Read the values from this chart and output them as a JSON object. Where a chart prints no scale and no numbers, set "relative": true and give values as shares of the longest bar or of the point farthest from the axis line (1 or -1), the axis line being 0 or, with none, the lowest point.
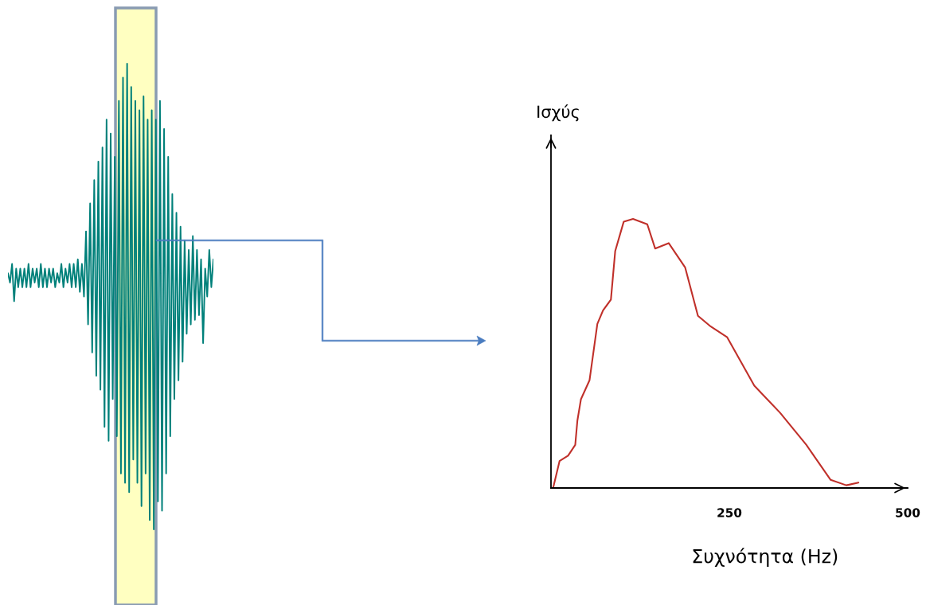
{
  "chart_data": [
    {
      "type": "line",
      "relative": true,
      "tick_labels": false,
      "categories": [
        null,
        null,
        null,
        null,
        null,
        null,
        null,
        null,
        null,
        null,
        null,
        null,
        null,
        null,
        null,
        null,
        null,
        null,
        null,
        null,
        null,
        null,
        null,
        null,
        null,
        null,
        null,
        null,
        null,
        null,
        null,
        null,
        null,
        null,
        null,
        null,
        null,
        null,
        null,
        null,
        null,
        null,
        null,
        null,
        null,
        null,
        null,
        null,
        null,
        null,
        null,
        null,
        null,
        null,
        null,
        null,
        null,
        null,
        null,
        null,
        null,
        null,
        null,
        null,
        null,
        null,
        null,
        null,
        null,
        null,
        null,
        null,
        null,
        null,
        null,
        null,
        null,
        null,
        null,
        null,
        null,
        null,
        null,
        null,
        null,
        null,
        null,
        null,
        null,
        null,
        null,
        null,
        null,
        null,
        null,
        null,
        null,
        null,
        null,
        null,
        null
      ],
      "series": [
        {
          "color": "#00807a",
          "values": [
            0.55,
            0.53,
            0.57,
            0.49,
            0.56,
            0.52,
            0.56,
            0.52,
            0.56,
            0.52,
            0.57,
            0.52,
            0.56,
            0.53,
            0.56,
            0.52,
            0.57,
            0.52,
            0.56,
            0.52,
            0.56,
            0.53,
            0.56,
            0.52,
            0.55,
            0.53,
            0.57,
            0.52,
            0.56,
            0.53,
            0.57,
            0.52,
            0.57,
            0.52,
            0.58,
            0.51,
            0.57,
            0.5,
            0.64,
            0.44,
            0.7,
            0.38,
            0.75,
            0.33,
            0.79,
            0.3,
            0.82,
            0.22,
            0.88,
            0.19,
            0.85,
            0.28,
            0.8,
            0.2,
            0.92,
            0.12,
            0.97,
            0.1,
            1.0,
            0.08,
            0.95,
            0.15,
            0.92,
            0.1,
            0.9,
            0.05,
            0.93,
            0.12,
            0.88,
            0.02,
            0.9,
            0.0,
            0.88,
            0.06,
            0.92,
            0.04,
            0.86,
            0.12,
            0.8,
            0.2,
            0.72,
            0.28,
            0.68,
            0.32,
            0.65,
            0.36,
            0.62,
            0.42,
            0.6,
            0.44,
            0.63,
            0.45,
            0.6,
            0.46,
            0.58,
            0.4,
            0.56,
            0.5,
            0.6,
            0.52,
            0.58
          ]
        }
      ]
    },
    {
      "type": "line",
      "relative": true,
      "tick_labels": "x",
      "xlabel": "Συχνότητα (Hz)",
      "ylabel": "Ισχύς",
      "xlim": [
        0,
        500
      ],
      "xticks": [
        250,
        500
      ],
      "series": [
        {
          "color": "#c0302a",
          "x": [
            3,
            12,
            24,
            34,
            37,
            42,
            54,
            65,
            73,
            84,
            90,
            102,
            115,
            135,
            146,
            165,
            188,
            206,
            224,
            247,
            285,
            321,
            358,
            392,
            414,
            431
          ],
          "values": [
            0,
            0.1,
            0.12,
            0.16,
            0.25,
            0.33,
            0.4,
            0.61,
            0.66,
            0.7,
            0.88,
            0.99,
            1.0,
            0.98,
            0.89,
            0.91,
            0.82,
            0.64,
            0.6,
            0.56,
            0.38,
            0.28,
            0.16,
            0.03,
            0.01,
            0.02
          ]
        }
      ]
    }
  ]
}
